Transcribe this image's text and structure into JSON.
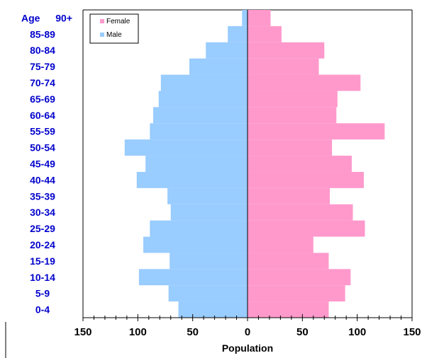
{
  "chart_data": {
    "type": "bar",
    "orientation": "horizontal",
    "layout": "population-pyramid",
    "title": "",
    "xlabel": "Population",
    "ylabel": "Age",
    "categories": [
      "0-4",
      "5-9",
      "10-14",
      "15-19",
      "20-24",
      "25-29",
      "30-34",
      "35-39",
      "40-44",
      "45-49",
      "50-54",
      "55-59",
      "60-64",
      "65-69",
      "70-74",
      "75-79",
      "80-84",
      "85-89",
      "90+"
    ],
    "series": [
      {
        "name": "Female",
        "color": "#ff99cc",
        "values": [
          74,
          89,
          94,
          74,
          60,
          107,
          96,
          75,
          106,
          95,
          77,
          125,
          81,
          82,
          103,
          65,
          70,
          31,
          21
        ]
      },
      {
        "name": "Male",
        "color": "#99ccff",
        "values": [
          63,
          72,
          99,
          71,
          95,
          89,
          70,
          73,
          101,
          93,
          112,
          89,
          86,
          81,
          79,
          53,
          38,
          18,
          5
        ]
      }
    ],
    "xlim": [
      -150,
      150
    ],
    "x_ticks": [
      -150,
      -100,
      -50,
      0,
      50,
      100,
      150
    ],
    "x_tick_labels": [
      "150",
      "100",
      "50",
      "0",
      "50",
      "100",
      "150"
    ],
    "grid": false,
    "legend_position": "top-left"
  }
}
